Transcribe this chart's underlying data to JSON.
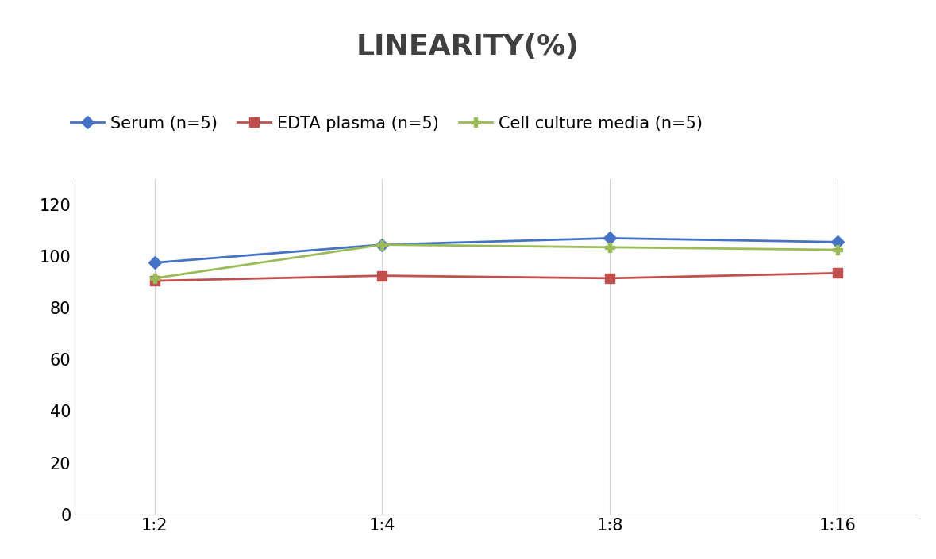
{
  "title": "LINEARITY(%)",
  "x_labels": [
    "1:2",
    "1:4",
    "1:8",
    "1:16"
  ],
  "x_positions": [
    0,
    1,
    2,
    3
  ],
  "series": [
    {
      "name": "Serum (n=5)",
      "values": [
        97.5,
        104.5,
        107.0,
        105.5
      ],
      "color": "#4472C4",
      "marker": "D",
      "linewidth": 2.0,
      "markersize": 8
    },
    {
      "name": "EDTA plasma (n=5)",
      "values": [
        90.5,
        92.5,
        91.5,
        93.5
      ],
      "color": "#C0504D",
      "marker": "s",
      "linewidth": 2.0,
      "markersize": 8
    },
    {
      "name": "Cell culture media (n=5)",
      "values": [
        91.5,
        104.5,
        103.5,
        102.5
      ],
      "color": "#9BBB59",
      "marker": "P",
      "linewidth": 2.0,
      "markersize": 9
    }
  ],
  "ylim": [
    0,
    130
  ],
  "yticks": [
    0,
    20,
    40,
    60,
    80,
    100,
    120
  ],
  "title_fontsize": 26,
  "tick_fontsize": 15,
  "legend_fontsize": 15,
  "background_color": "#ffffff",
  "grid_color": "#d0d0d0",
  "title_color": "#404040",
  "spine_color": "#aaaaaa"
}
